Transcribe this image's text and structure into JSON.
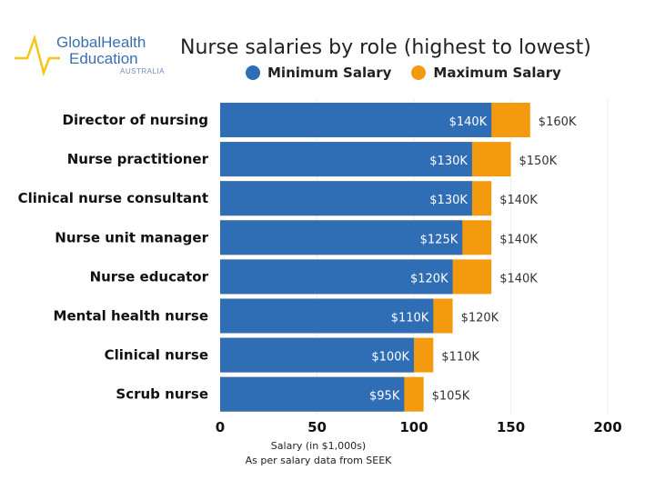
{
  "logo": {
    "line1": "GlobalHealth",
    "line2": "Education",
    "line3": "AUSTRALIA"
  },
  "chart_data": {
    "type": "bar",
    "orientation": "horizontal",
    "stacked_overlay": true,
    "title": "Nurse salaries by role (highest to lowest)",
    "xlabel": "Salary (in $1,000s)",
    "note": "As per salary data from SEEK",
    "xlim": [
      0,
      200
    ],
    "xticks": [
      0,
      50,
      100,
      150,
      200
    ],
    "grid": true,
    "legend_position": "top",
    "categories": [
      "Director of nursing",
      "Nurse practitioner",
      "Clinical nurse consultant",
      "Nurse unit manager",
      "Nurse educator",
      "Mental health nurse",
      "Clinical nurse",
      "Scrub nurse"
    ],
    "series": [
      {
        "name": "Minimum Salary",
        "color": "#2f6db5",
        "values": [
          140,
          130,
          130,
          125,
          120,
          110,
          100,
          95
        ],
        "labels": [
          "$140K",
          "$130K",
          "$130K",
          "$125K",
          "$120K",
          "$110K",
          "$100K",
          "$95K"
        ]
      },
      {
        "name": "Maximum Salary",
        "color": "#f39a0e",
        "values": [
          160,
          150,
          140,
          140,
          140,
          120,
          110,
          105
        ],
        "labels": [
          "$160K",
          "$150K",
          "$140K",
          "$140K",
          "$140K",
          "$120K",
          "$110K",
          "$105K"
        ]
      }
    ]
  }
}
